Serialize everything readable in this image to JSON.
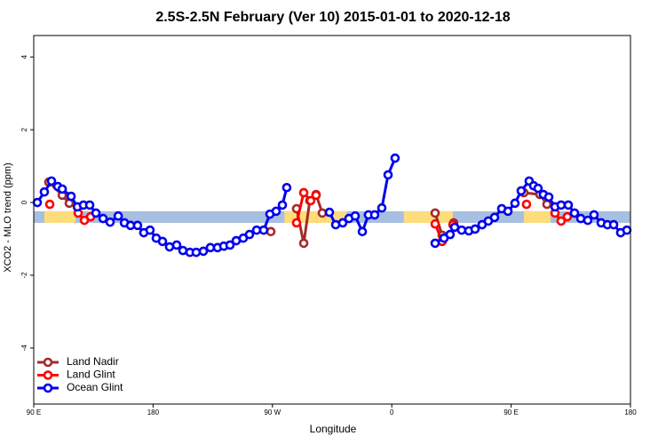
{
  "chart_data": {
    "type": "line",
    "title": "2.5S-2.5N February (Ver 10)   2015-01-01 to 2020-12-18",
    "x_label": "Longitude",
    "y_label": "XCO2 - MLO trend (ppm)",
    "xlim": [
      90,
      540
    ],
    "ylim": [
      -5.54,
      4.59
    ],
    "xticks": [
      {
        "value": 90,
        "label": "90 E"
      },
      180,
      {
        "value": 270,
        "label": "90 W"
      },
      {
        "value": 360,
        "label": "0"
      },
      {
        "value": 450,
        "label": "90 E"
      },
      {
        "value": 540,
        "label": "180"
      }
    ],
    "yticks": [
      -4,
      -2,
      0,
      2,
      4
    ],
    "band": {
      "ylim": [
        -0.56,
        -0.24
      ],
      "ocean_color": "#a7bfe0",
      "land_color": "#fddc7c",
      "land_ranges": [
        [
          98,
          121.5
        ],
        [
          279,
          326
        ],
        [
          369,
          406
        ],
        [
          459.6,
          479.7
        ]
      ]
    },
    "legend": "bottomleft",
    "series": [
      {
        "name": "Land Nadir",
        "color": "#a52a2a",
        "x": [
          101.4,
          111.5,
          116.8,
          null,
          268.8,
          null,
          288.2,
          293.6,
          298.2,
          302.9,
          307.6,
          null,
          392.7,
          398.0,
          null,
          406.7,
          null,
          459.6,
          471.7,
          477.0
        ],
        "values": [
          0.56,
          0.2,
          -0.02,
          null,
          -0.8,
          null,
          -0.17,
          -1.12,
          0.05,
          0.22,
          -0.29,
          null,
          -0.29,
          -0.9,
          null,
          -0.56,
          null,
          0.27,
          0.22,
          -0.05
        ]
      },
      {
        "name": "Land Glint",
        "color": "#ff0000",
        "x": [
          102.1,
          null,
          123.5,
          128.2,
          132.9,
          null,
          288.2,
          293.6,
          298.9,
          302.9,
          null,
          392.7,
          398.0,
          null,
          406.1,
          null,
          461.6,
          null,
          483.1,
          487.7,
          492.4
        ],
        "values": [
          -0.05,
          null,
          -0.29,
          -0.49,
          -0.39,
          null,
          -0.56,
          0.27,
          0.05,
          0.2,
          null,
          -0.59,
          -1.07,
          null,
          -0.61,
          null,
          -0.05,
          null,
          -0.29,
          -0.51,
          -0.39
        ]
      },
      {
        "name": "Ocean Glint",
        "color": "#0000ee",
        "x": [
          92.7,
          98.0,
          103.4,
          108.1,
          111.5,
          118.2,
          122.9,
          127.5,
          132.2,
          136.9,
          142.3,
          147.6,
          153.7,
          158.4,
          163.0,
          168.3,
          173.0,
          177.7,
          182.4,
          187.1,
          192.4,
          197.8,
          202.5,
          207.8,
          212.5,
          217.9,
          223.2,
          228.6,
          233.3,
          238.0,
          242.7,
          248.0,
          252.7,
          258.1,
          263.4,
          268.1,
          272.8,
          277.5,
          280.8,
          null,
          313.0,
          317.7,
          323.0,
          327.7,
          332.4,
          337.8,
          342.4,
          347.1,
          352.5,
          357.2,
          362.5,
          null,
          392.7,
          399.4,
          404.0,
          407.4,
          412.7,
          418.1,
          422.8,
          428.1,
          432.8,
          437.5,
          442.9,
          447.6,
          452.9,
          457.6,
          463.6,
          467.0,
          470.3,
          474.3,
          478.4,
          483.1,
          487.7,
          493.1,
          497.8,
          502.5,
          507.8,
          512.5,
          517.9,
          522.6,
          527.3,
          532.6,
          537.3
        ],
        "values": [
          0,
          0.29,
          0.59,
          0.44,
          0.37,
          0.17,
          -0.12,
          -0.07,
          -0.07,
          -0.29,
          -0.44,
          -0.54,
          -0.37,
          -0.56,
          -0.63,
          -0.63,
          -0.83,
          -0.76,
          -0.98,
          -1.07,
          -1.22,
          -1.17,
          -1.32,
          -1.37,
          -1.37,
          -1.34,
          -1.24,
          -1.24,
          -1.2,
          -1.17,
          -1.05,
          -0.98,
          -0.88,
          -0.76,
          -0.76,
          -0.32,
          -0.24,
          -0.07,
          0.41,
          null,
          -0.27,
          -0.61,
          -0.56,
          -0.44,
          -0.37,
          -0.8,
          -0.34,
          -0.34,
          -0.15,
          0.76,
          1.22,
          null,
          -1.12,
          -0.98,
          -0.88,
          -0.68,
          -0.76,
          -0.78,
          -0.73,
          -0.61,
          -0.51,
          -0.41,
          -0.17,
          -0.24,
          -0.02,
          0.32,
          0.59,
          0.46,
          0.39,
          0.22,
          0.15,
          -0.12,
          -0.07,
          -0.07,
          -0.29,
          -0.44,
          -0.49,
          -0.34,
          -0.56,
          -0.61,
          -0.61,
          -0.83,
          -0.76
        ]
      }
    ]
  }
}
